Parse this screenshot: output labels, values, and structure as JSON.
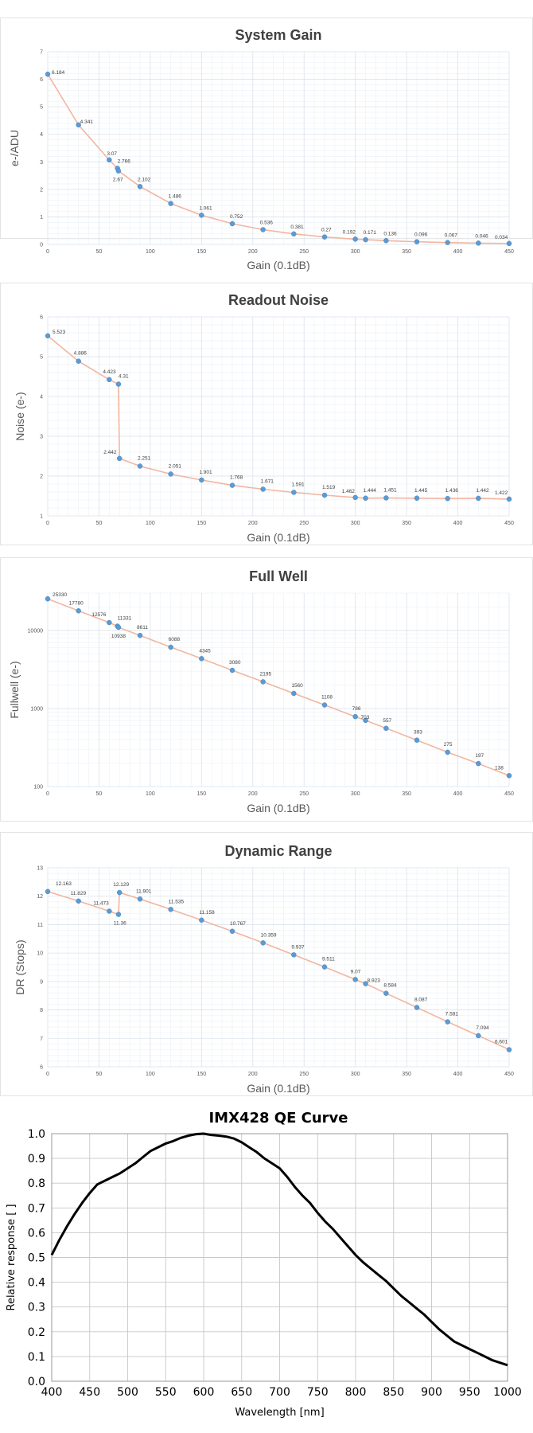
{
  "chart_data": [
    {
      "type": "line",
      "title": "System Gain",
      "xlabel": "Gain (0.1dB)",
      "ylabel": "e-/ADU",
      "xlim": [
        0,
        450
      ],
      "ylim": [
        0,
        7
      ],
      "xticks": [
        0,
        50,
        100,
        150,
        200,
        250,
        300,
        350,
        400,
        450
      ],
      "yticks": [
        0,
        1,
        2,
        3,
        4,
        5,
        6,
        7
      ],
      "x": [
        0,
        30,
        60,
        68,
        69,
        90,
        120,
        150,
        180,
        210,
        240,
        270,
        300,
        310,
        330,
        360,
        390,
        420,
        450
      ],
      "y": [
        6.184,
        4.341,
        3.07,
        2.766,
        2.67,
        2.102,
        1.486,
        1.061,
        0.752,
        0.536,
        0.381,
        0.27,
        0.192,
        0.171,
        0.136,
        0.096,
        0.067,
        0.046,
        0.034
      ],
      "labels": [
        "6.184",
        "4.341",
        "3.07",
        "2.766",
        "2.67",
        "2.102",
        "1.486",
        "1.061",
        "0.752",
        "0.536",
        "0.381",
        "0.27",
        "0.192",
        "0.171",
        "0.136",
        "0.096",
        "0.067",
        "0.046",
        "0.034"
      ]
    },
    {
      "type": "line",
      "title": "Readout Noise",
      "xlabel": "Gain (0.1dB)",
      "ylabel": "Noise (e-)",
      "xlim": [
        0,
        450
      ],
      "ylim": [
        1,
        6
      ],
      "xticks": [
        0,
        50,
        100,
        150,
        200,
        250,
        300,
        350,
        400,
        450
      ],
      "yticks": [
        1,
        2,
        3,
        4,
        5,
        6
      ],
      "x": [
        0,
        30,
        60,
        69,
        70,
        90,
        120,
        150,
        180,
        210,
        240,
        270,
        300,
        310,
        330,
        360,
        390,
        420,
        450
      ],
      "y": [
        5.523,
        4.886,
        4.423,
        4.31,
        2.442,
        2.251,
        2.051,
        1.901,
        1.768,
        1.671,
        1.591,
        1.519,
        1.462,
        1.444,
        1.451,
        1.445,
        1.436,
        1.442,
        1.422
      ],
      "labels": [
        "5.523",
        "4.886",
        "4.423",
        "4.31",
        "2.442",
        "2.251",
        "2.051",
        "1.901",
        "1.768",
        "1.671",
        "1.591",
        "1.519",
        "1.462",
        "1.444",
        "1.451",
        "1.445",
        "1.436",
        "1.442",
        "1.422"
      ]
    },
    {
      "type": "line",
      "title": "Full Well",
      "xlabel": "Gain (0.1dB)",
      "ylabel": "Fullwell (e-)",
      "xlim": [
        0,
        450
      ],
      "yscale": "log",
      "ylim": [
        100,
        30000
      ],
      "xticks": [
        0,
        50,
        100,
        150,
        200,
        250,
        300,
        350,
        400,
        450
      ],
      "yticks": [
        100,
        1000,
        10000
      ],
      "ytick_labels": [
        "100",
        "1000",
        "10000"
      ],
      "x": [
        0,
        30,
        60,
        68,
        69,
        90,
        120,
        150,
        180,
        210,
        240,
        270,
        300,
        310,
        330,
        360,
        390,
        420,
        450
      ],
      "y": [
        25330,
        17780,
        12576,
        11331,
        10938,
        8611,
        6088,
        4345,
        3080,
        2195,
        1560,
        1108,
        786,
        703,
        557,
        393,
        275,
        197,
        138
      ],
      "labels": [
        "25330",
        "17780",
        "12576",
        "11331",
        "10938",
        "8611",
        "6088",
        "4345",
        "3080",
        "2195",
        "1560",
        "1108",
        "786",
        "703",
        "557",
        "393",
        "275",
        "197",
        "138"
      ]
    },
    {
      "type": "line",
      "title": "Dynamic Range",
      "xlabel": "Gain (0.1dB)",
      "ylabel": "DR (Stops)",
      "xlim": [
        0,
        450
      ],
      "ylim": [
        6,
        13
      ],
      "xticks": [
        0,
        50,
        100,
        150,
        200,
        250,
        300,
        350,
        400,
        450
      ],
      "yticks": [
        6,
        7,
        8,
        9,
        10,
        11,
        12,
        13
      ],
      "x": [
        0,
        30,
        60,
        69,
        70,
        90,
        120,
        150,
        180,
        210,
        240,
        270,
        300,
        310,
        330,
        360,
        390,
        420,
        450
      ],
      "y": [
        12.163,
        11.829,
        11.473,
        11.36,
        12.129,
        11.901,
        11.535,
        11.158,
        10.767,
        10.359,
        9.937,
        9.511,
        9.07,
        8.923,
        8.584,
        8.087,
        7.581,
        7.094,
        6.601
      ],
      "labels": [
        "12.163",
        "11.829",
        "11.473",
        "11.36",
        "12.129",
        "11.901",
        "11.535",
        "11.158",
        "10.767",
        "10.359",
        "9.937",
        "9.511",
        "9.07",
        "8.923",
        "8.584",
        "8.087",
        "7.581",
        "7.094",
        "6.601"
      ]
    },
    {
      "type": "line",
      "title": "IMX428 QE Curve",
      "xlabel": "Wavelength [nm]",
      "ylabel": "Relative response [ ]",
      "xlim": [
        400,
        1000
      ],
      "ylim": [
        0,
        1
      ],
      "xticks": [
        400,
        450,
        500,
        550,
        600,
        650,
        700,
        750,
        800,
        850,
        900,
        950,
        1000
      ],
      "yticks": [
        0,
        0.1,
        0.2,
        0.3,
        0.4,
        0.5,
        0.6,
        0.7,
        0.8,
        0.9,
        1.0
      ],
      "ytick_labels": [
        "0.0",
        "0.1",
        "0.2",
        "0.3",
        "0.4",
        "0.5",
        "0.6",
        "0.7",
        "0.8",
        "0.9",
        "1.0"
      ],
      "x": [
        400,
        410,
        420,
        430,
        440,
        450,
        460,
        470,
        480,
        490,
        500,
        510,
        520,
        530,
        540,
        550,
        560,
        570,
        580,
        590,
        600,
        610,
        620,
        630,
        640,
        650,
        660,
        670,
        680,
        690,
        700,
        710,
        720,
        730,
        740,
        750,
        760,
        770,
        780,
        790,
        800,
        810,
        820,
        830,
        840,
        850,
        860,
        870,
        880,
        890,
        900,
        910,
        920,
        930,
        940,
        950,
        960,
        970,
        980,
        990,
        1000
      ],
      "y": [
        0.51,
        0.57,
        0.625,
        0.675,
        0.72,
        0.76,
        0.795,
        0.81,
        0.825,
        0.84,
        0.86,
        0.88,
        0.905,
        0.93,
        0.945,
        0.96,
        0.97,
        0.983,
        0.992,
        0.998,
        1.0,
        0.995,
        0.992,
        0.988,
        0.98,
        0.965,
        0.945,
        0.925,
        0.9,
        0.88,
        0.86,
        0.825,
        0.785,
        0.75,
        0.72,
        0.68,
        0.645,
        0.615,
        0.58,
        0.545,
        0.51,
        0.48,
        0.455,
        0.43,
        0.405,
        0.375,
        0.345,
        0.32,
        0.295,
        0.27,
        0.24,
        0.21,
        0.185,
        0.16,
        0.145,
        0.13,
        0.115,
        0.1,
        0.085,
        0.075,
        0.065
      ]
    }
  ]
}
